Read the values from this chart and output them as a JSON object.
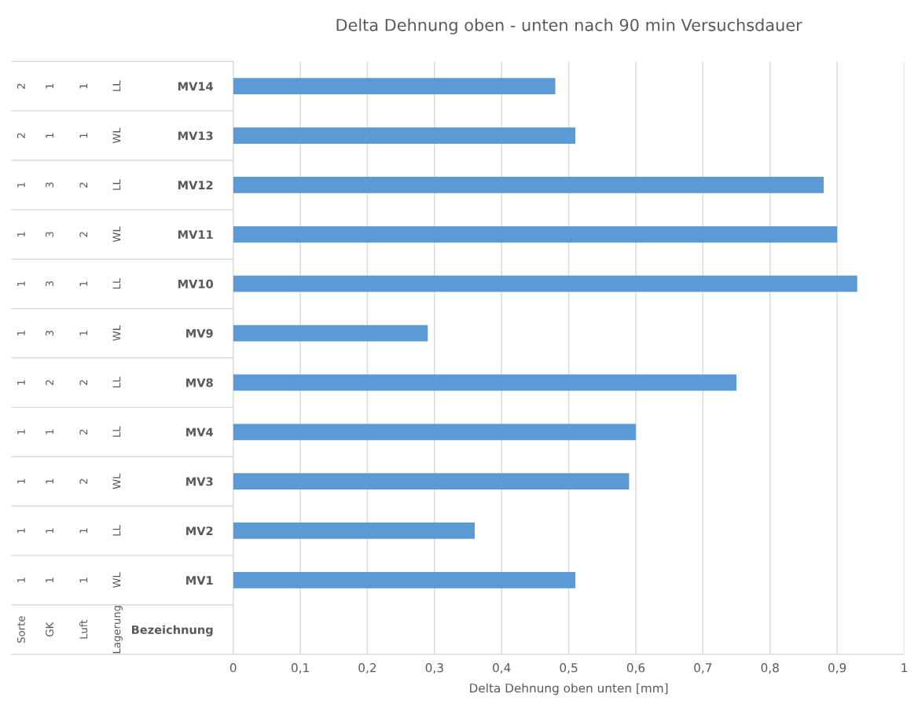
{
  "chart_data": {
    "type": "bar",
    "orientation": "horizontal",
    "title": "Delta Dehnung oben - unten nach 90 min Versuchsdauer",
    "xlabel": "Delta Dehnung oben unten [mm]",
    "categories": [
      "MV14",
      "MV13",
      "MV12",
      "MV11",
      "MV10",
      "MV9",
      "MV8",
      "MV4",
      "MV3",
      "MV2",
      "MV1",
      "Bezeichnung"
    ],
    "values": [
      0.48,
      0.51,
      0.88,
      0.9,
      0.93,
      0.29,
      0.75,
      0.6,
      0.59,
      0.36,
      0.51,
      null
    ],
    "color": "#5b9bd5",
    "xlim": [
      0,
      1
    ],
    "xticks": [
      0,
      {
        "value": 0.1,
        "label": "0,1"
      },
      {
        "value": 0.2,
        "label": "0,2"
      },
      {
        "value": 0.3,
        "label": "0,3"
      },
      {
        "value": 0.4,
        "label": "0,4"
      },
      {
        "value": 0.5,
        "label": "0,5"
      },
      {
        "value": 0.6,
        "label": "0,6"
      },
      {
        "value": 0.7,
        "label": "0,7"
      },
      {
        "value": 0.8,
        "label": "0,8"
      },
      {
        "value": 0.9,
        "label": "0,9"
      },
      1
    ],
    "grid": "x",
    "annotations": [
      "2",
      "1",
      "1",
      "LL",
      "2",
      "1",
      "1",
      "WL",
      "1",
      "3",
      "2",
      "LL",
      "1",
      "3",
      "2",
      "WL",
      "1",
      "3",
      "1",
      "LL",
      "1",
      "3",
      "1",
      "WL",
      "1",
      "2",
      "2",
      "LL",
      "1",
      "1",
      "2",
      "LL",
      "1",
      "1",
      "2",
      "WL",
      "1",
      "1",
      "1",
      "LL",
      "1",
      "1",
      "1",
      "WL",
      "Sorte",
      "GK",
      "Luft",
      "Lagerung"
    ]
  }
}
